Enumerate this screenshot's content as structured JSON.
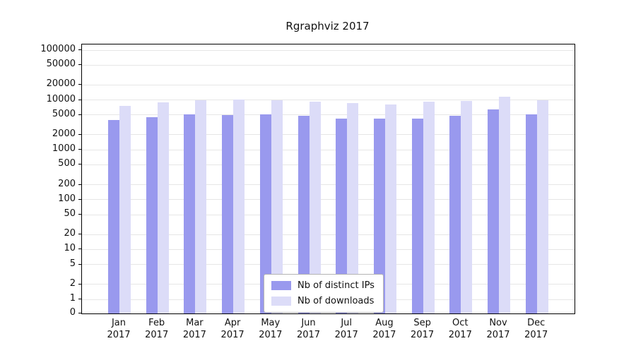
{
  "chart_data": {
    "type": "bar",
    "title": "Rgraphviz 2017",
    "scale": "symlog",
    "ylim": [
      0,
      100000
    ],
    "grid": "horizontal",
    "legend_position": "bottom-center",
    "yticks": [
      0,
      1,
      2,
      5,
      10,
      20,
      50,
      100,
      200,
      500,
      1000,
      2000,
      5000,
      10000,
      20000,
      50000,
      100000
    ],
    "months": [
      "Jan",
      "Feb",
      "Mar",
      "Apr",
      "May",
      "Jun",
      "Jul",
      "Aug",
      "Sep",
      "Oct",
      "Nov",
      "Dec"
    ],
    "year": "2017",
    "series": [
      {
        "name": "Nb of distinct IPs",
        "color": "#9999ee",
        "values": [
          4000,
          4500,
          5100,
          5000,
          5200,
          4800,
          4300,
          4200,
          4300,
          4800,
          6500,
          5100
        ]
      },
      {
        "name": "Nb of downloads",
        "color": "#dcdcf8",
        "values": [
          7500,
          9000,
          9800,
          10300,
          10000,
          9300,
          8700,
          8200,
          9200,
          9500,
          11800,
          9800
        ]
      }
    ]
  }
}
